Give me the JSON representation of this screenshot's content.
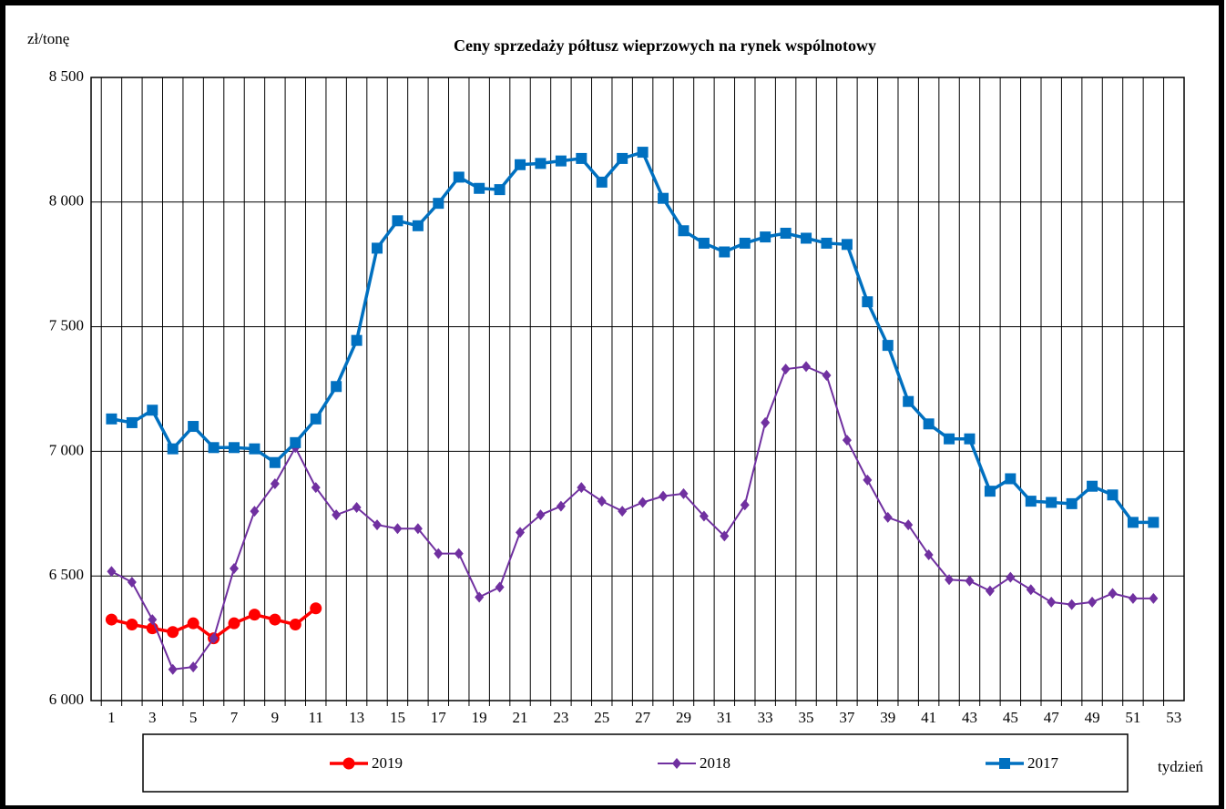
{
  "chart_data": {
    "type": "line",
    "title": "Ceny sprzedaży półtusz wieprzowych  na rynek wspólnotowy",
    "y_label": "zł/tonę",
    "x_label": "tydzień",
    "x": [
      1,
      2,
      3,
      4,
      5,
      6,
      7,
      8,
      9,
      10,
      11,
      12,
      13,
      14,
      15,
      16,
      17,
      18,
      19,
      20,
      21,
      22,
      23,
      24,
      25,
      26,
      27,
      28,
      29,
      30,
      31,
      32,
      33,
      34,
      35,
      36,
      37,
      38,
      39,
      40,
      41,
      42,
      43,
      44,
      45,
      46,
      47,
      48,
      49,
      50,
      51,
      52
    ],
    "xlim": [
      0,
      53.5
    ],
    "xticks": [
      1,
      3,
      5,
      7,
      9,
      11,
      13,
      15,
      17,
      19,
      21,
      23,
      25,
      27,
      29,
      31,
      33,
      35,
      37,
      39,
      41,
      43,
      45,
      47,
      49,
      51,
      53
    ],
    "ylim": [
      6000,
      8500
    ],
    "yticks": [
      {
        "value": 6000,
        "label": "6 000"
      },
      {
        "value": 6500,
        "label": "6 500"
      },
      {
        "value": 7000,
        "label": "7 000"
      },
      {
        "value": 7500,
        "label": "7 500"
      },
      {
        "value": 8000,
        "label": "8 000"
      },
      {
        "value": 8500,
        "label": "8 500"
      }
    ],
    "grid": true,
    "legend": "bottom",
    "series": [
      {
        "name": "2019",
        "color": "#ff0000",
        "marker": "circle",
        "values": [
          6325,
          6305,
          6290,
          6275,
          6310,
          6250,
          6310,
          6345,
          6325,
          6305,
          6370,
          null,
          null,
          null,
          null,
          null,
          null,
          null,
          null,
          null,
          null,
          null,
          null,
          null,
          null,
          null,
          null,
          null,
          null,
          null,
          null,
          null,
          null,
          null,
          null,
          null,
          null,
          null,
          null,
          null,
          null,
          null,
          null,
          null,
          null,
          null,
          null,
          null,
          null,
          null,
          null,
          null
        ]
      },
      {
        "name": "2018",
        "color": "#7030a0",
        "marker": "diamond",
        "values": [
          6518,
          6475,
          6325,
          6125,
          6135,
          6250,
          6530,
          6760,
          6870,
          7015,
          6855,
          6745,
          6775,
          6705,
          6690,
          6690,
          6590,
          6590,
          6415,
          6455,
          6675,
          6745,
          6780,
          6855,
          6800,
          6760,
          6795,
          6820,
          6830,
          6740,
          6660,
          6785,
          7115,
          7330,
          7340,
          7305,
          7045,
          6885,
          6735,
          6705,
          6585,
          6485,
          6480,
          6440,
          6495,
          6445,
          6395,
          6385,
          6395,
          6430,
          6410,
          6410
        ]
      },
      {
        "name": "2017",
        "color": "#0070c0",
        "marker": "square",
        "values": [
          7130,
          7115,
          7165,
          7010,
          7100,
          7015,
          7015,
          7010,
          6955,
          7035,
          7130,
          7260,
          7445,
          7815,
          7925,
          7905,
          7995,
          8100,
          8055,
          8050,
          8150,
          8155,
          8165,
          8175,
          8080,
          8175,
          8200,
          8015,
          7885,
          7835,
          7800,
          7835,
          7860,
          7875,
          7855,
          7835,
          7830,
          7600,
          7425,
          7200,
          7110,
          7050,
          7050,
          6840,
          6890,
          6800,
          6795,
          6790,
          6860,
          6825,
          6715,
          6715
        ]
      }
    ]
  }
}
